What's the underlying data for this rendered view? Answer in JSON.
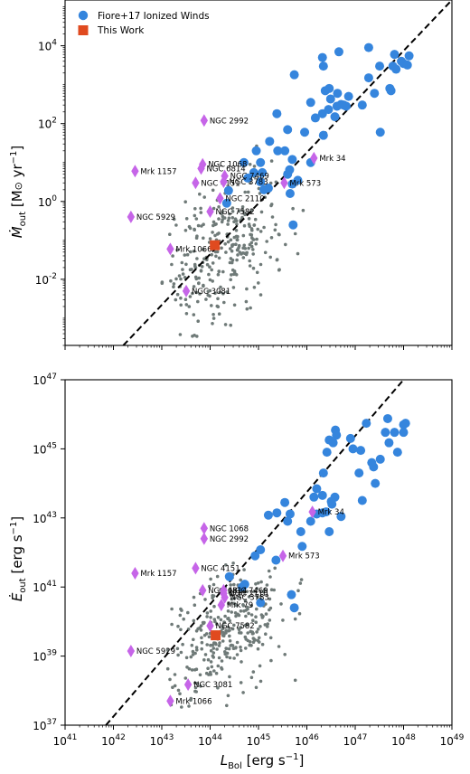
{
  "colors": {
    "fiore": "#3585dd",
    "this_work": "#e04a1f",
    "literature": "#c665e8",
    "background": "#6f7a78",
    "fit": "#000000"
  },
  "legend": {
    "fiore_label": "Fiore+17 Ionized Winds",
    "this_work_label": "This Work"
  },
  "shared_x": {
    "label": "L_Bol [erg s^-1]",
    "scale": "log",
    "ticks": [
      "10^41",
      "10^42",
      "10^43",
      "10^44",
      "10^45",
      "10^46",
      "10^47",
      "10^48",
      "10^49"
    ]
  },
  "chart_data": [
    {
      "type": "scatter",
      "panel": "top",
      "ylabel": "Ṁ_out [M⊙ yr^-1]",
      "xlabel": "",
      "x_scale": "log",
      "y_scale": "log",
      "xlim": [
        1e+41,
        1e+49
      ],
      "ylim": [
        0.0002,
        150000
      ],
      "y_ticks": [
        "10^-2",
        "10^0",
        "10^2",
        "10^4"
      ],
      "legend_position": "top-left",
      "fit_line": {
        "style": "dashed",
        "points": [
          [
            1.6e+42,
            0.0002
          ],
          [
            1e+49,
            150000
          ]
        ]
      },
      "series": [
        {
          "name": "Fiore+17 Ionized Winds",
          "marker": "circle",
          "points": [
            [
              4.6e+46,
              7000
            ],
            [
              1.9e+47,
              9000
            ],
            [
              3.2e+47,
              3000
            ],
            [
              5.5e+47,
              700
            ],
            [
              6.5e+47,
              6000
            ],
            [
              9e+47,
              4000
            ],
            [
              6e+47,
              3000
            ],
            [
              1e+48,
              3500
            ],
            [
              1.3e+48,
              5500
            ],
            [
              1.2e+48,
              3200
            ],
            [
              7e+47,
              2500
            ],
            [
              5.5e+45,
              1800
            ],
            [
              2.2e+46,
              3000
            ],
            [
              4.3e+46,
              600
            ],
            [
              2.4e+46,
              700
            ],
            [
              2.9e+46,
              800
            ],
            [
              2.1e+46,
              5000
            ],
            [
              7.3e+46,
              500
            ],
            [
              6.5e+46,
              280
            ],
            [
              2.8e+46,
              230
            ],
            [
              2.1e+46,
              180
            ],
            [
              3.8e+46,
              150
            ],
            [
              1.5e+46,
              140
            ],
            [
              1.2e+46,
              350
            ],
            [
              3.1e+46,
              430
            ],
            [
              4.2e+46,
              280
            ],
            [
              5.1e+46,
              310
            ],
            [
              5.8e+46,
              300
            ],
            [
              1.9e+47,
              1500
            ],
            [
              1.4e+47,
              300
            ],
            [
              2.5e+47,
              600
            ],
            [
              5.2e+47,
              800
            ],
            [
              3.3e+47,
              60
            ],
            [
              2.2e+46,
              50
            ],
            [
              3.5e+45,
              20
            ],
            [
              4e+45,
              70
            ],
            [
              2.4e+45,
              180
            ],
            [
              9e+44,
              20
            ],
            [
              1.1e+45,
              10
            ],
            [
              2.5e+45,
              20
            ],
            [
              1.7e+45,
              35
            ],
            [
              5e+45,
              12
            ],
            [
              1.2e+46,
              10
            ],
            [
              9e+45,
              60
            ],
            [
              4.4e+45,
              6.5
            ],
            [
              5e+44,
              10
            ],
            [
              8e+44,
              5.5
            ],
            [
              1.2e+45,
              5.5
            ],
            [
              6e+44,
              4
            ],
            [
              1.1e+45,
              3.2
            ],
            [
              4e+45,
              5
            ],
            [
              5e+45,
              2.8
            ],
            [
              6.5e+45,
              3.5
            ],
            [
              1.6e+45,
              2.2
            ],
            [
              1.3e+45,
              2
            ],
            [
              2.4e+44,
              1.9
            ],
            [
              4.5e+45,
              1.6
            ],
            [
              5.2e+45,
              0.25
            ],
            [
              2.2e+44,
              0.9
            ]
          ]
        },
        {
          "name": "This Work",
          "marker": "square",
          "points": [
            [
              1.25e+44,
              0.075
            ]
          ]
        },
        {
          "name": "Literature objects",
          "marker": "diamond",
          "points": [
            {
              "label": "NGC 2992",
              "x": 7.5e+43,
              "y": 120
            },
            {
              "label": "NGC 1068",
              "x": 7e+43,
              "y": 9
            },
            {
              "label": "NGC 6814",
              "x": 6.5e+43,
              "y": 7
            },
            {
              "label": "Mrk 1157",
              "x": 2.8e+42,
              "y": 6
            },
            {
              "label": "NGC 7469",
              "x": 2e+44,
              "y": 4.5
            },
            {
              "label": "NGC 4151",
              "x": 5e+43,
              "y": 3
            },
            {
              "label": "NGC 3783",
              "x": 1.9e+44,
              "y": 3.2
            },
            {
              "label": "NGC 2110",
              "x": 1.6e+44,
              "y": 1.2
            },
            {
              "label": "NGC 7582",
              "x": 1e+44,
              "y": 0.55
            },
            {
              "label": "NGC 5929",
              "x": 2.3e+42,
              "y": 0.4
            },
            {
              "label": "Mrk 1066",
              "x": 1.5e+43,
              "y": 0.06
            },
            {
              "label": "NGC 3081",
              "x": 3.2e+43,
              "y": 0.005
            },
            {
              "label": "Mrk 34",
              "x": 1.4e+46,
              "y": 13
            },
            {
              "label": "Mrk 573",
              "x": 3.4e+45,
              "y": 3
            }
          ]
        },
        {
          "name": "Background sample",
          "marker": "dot",
          "points": "dense cloud (~300 pts) spanning L_Bol 10^43–10^46, Ṁ 10^-3.5–10^1.5"
        }
      ]
    },
    {
      "type": "scatter",
      "panel": "bottom",
      "ylabel": "Ė_out [erg s^-1]",
      "xlabel": "L_Bol [erg s^-1]",
      "x_scale": "log",
      "y_scale": "log",
      "xlim": [
        1e+41,
        1e+49
      ],
      "ylim": [
        1e+37,
        1e+47
      ],
      "y_ticks": [
        "10^37",
        "10^39",
        "10^41",
        "10^43",
        "10^45",
        "10^47"
      ],
      "fit_line": {
        "style": "dashed",
        "points": [
          [
            7e+41,
            1e+37
          ],
          [
            1e+48,
            1e+47
          ]
        ]
      },
      "series": [
        {
          "name": "Fiore+17 Ionized Winds",
          "marker": "circle",
          "points": [
            [
              4.7e+47,
              7.5e+45
            ],
            [
              1.7e+47,
              5.5e+45
            ],
            [
              3.9e+46,
              3.5e+45
            ],
            [
              2.9e+46,
              1.8e+45
            ],
            [
              3.5e+46,
              1.5e+45
            ],
            [
              8e+46,
              2e+45
            ],
            [
              6.5e+47,
              3e+45
            ],
            [
              1e+48,
              5e+45
            ],
            [
              1.1e+48,
              5.5e+45
            ],
            [
              1e+48,
              3e+45
            ],
            [
              7.5e+47,
              8e+44
            ],
            [
              4.2e+47,
              3e+45
            ],
            [
              5e+47,
              1.5e+45
            ],
            [
              3.3e+47,
              5e+44
            ],
            [
              2.4e+47,
              3e+44
            ],
            [
              2.2e+47,
              4e+44
            ],
            [
              2.6e+47,
              1e+44
            ],
            [
              1.3e+47,
              9e+44
            ],
            [
              9e+46,
              1e+45
            ],
            [
              1.2e+47,
              2e+44
            ],
            [
              1.4e+47,
              3.2e+43
            ],
            [
              4.1e+46,
              2.5e+45
            ],
            [
              2.6e+46,
              8e+44
            ],
            [
              2.2e+46,
              2e+44
            ],
            [
              1.6e+46,
              7e+43
            ],
            [
              2.1e+46,
              4.5e+43
            ],
            [
              1.4e+46,
              4e+43
            ],
            [
              1.2e+46,
              8e+42
            ],
            [
              1.6e+46,
              1.3e+43
            ],
            [
              2.5e+46,
              1.5e+43
            ],
            [
              3.3e+46,
              2.5e+43
            ],
            [
              3.8e+46,
              4e+43
            ],
            [
              3.2e+46,
              3e+43
            ],
            [
              5.1e+46,
              1.1e+43
            ],
            [
              2.9e+46,
              4e+42
            ],
            [
              2.1e+46,
              1.4e+43
            ],
            [
              3.5e+45,
              2.8e+43
            ],
            [
              4.5e+45,
              1.3e+43
            ],
            [
              2.4e+45,
              1.4e+43
            ],
            [
              4e+45,
              8e+42
            ],
            [
              1.6e+45,
              1.2e+43
            ],
            [
              7.5e+45,
              4e+42
            ],
            [
              8e+45,
              1.5e+42
            ],
            [
              1.1e+45,
              1.2e+42
            ],
            [
              8.5e+44,
              8e+41
            ],
            [
              2.3e+45,
              6e+41
            ],
            [
              4.8e+45,
              6e+40
            ],
            [
              4.6e+44,
              1e+41
            ],
            [
              5.2e+44,
              1.2e+41
            ],
            [
              2.5e+44,
              2e+41
            ],
            [
              5.5e+45,
              2.5e+40
            ],
            [
              1.1e+45,
              3.5e+40
            ]
          ]
        },
        {
          "name": "This Work",
          "marker": "square",
          "points": [
            [
              1.3e+44,
              4e+39
            ]
          ]
        },
        {
          "name": "Literature objects",
          "marker": "diamond",
          "points": [
            {
              "label": "NGC 1068",
              "x": 7.5e+43,
              "y": 5e+42
            },
            {
              "label": "NGC 2992",
              "x": 7.5e+43,
              "y": 2.5e+42
            },
            {
              "label": "Mrk 1157",
              "x": 2.8e+42,
              "y": 2.5e+41
            },
            {
              "label": "NGC 4151",
              "x": 5e+43,
              "y": 3.5e+41
            },
            {
              "label": "NGC 6814",
              "x": 7e+43,
              "y": 8e+40
            },
            {
              "label": "NGC 7469",
              "x": 1.9e+44,
              "y": 8e+40
            },
            {
              "label": "NGC 2110",
              "x": 1.9e+44,
              "y": 6.5e+40
            },
            {
              "label": "NGC 3783",
              "x": 2e+44,
              "y": 5e+40
            },
            {
              "label": "Mrk 79",
              "x": 1.7e+44,
              "y": 3e+40
            },
            {
              "label": "NGC 7582",
              "x": 1e+44,
              "y": 7.5e+39
            },
            {
              "label": "NGC 5929",
              "x": 2.3e+42,
              "y": 1.4e+39
            },
            {
              "label": "NGC 3081",
              "x": 3.5e+43,
              "y": 1.5e+38
            },
            {
              "label": "Mrk 1066",
              "x": 1.5e+43,
              "y": 5e+37
            },
            {
              "label": "Mrk 34",
              "x": 1.3e+46,
              "y": 1.5e+43
            },
            {
              "label": "Mrk 573",
              "x": 3.2e+45,
              "y": 8e+41
            }
          ]
        },
        {
          "name": "Background sample",
          "marker": "dot",
          "points": "dense cloud (~300 pts) spanning L_Bol 10^43–10^46, Ė 10^37.5–10^42"
        }
      ]
    }
  ]
}
